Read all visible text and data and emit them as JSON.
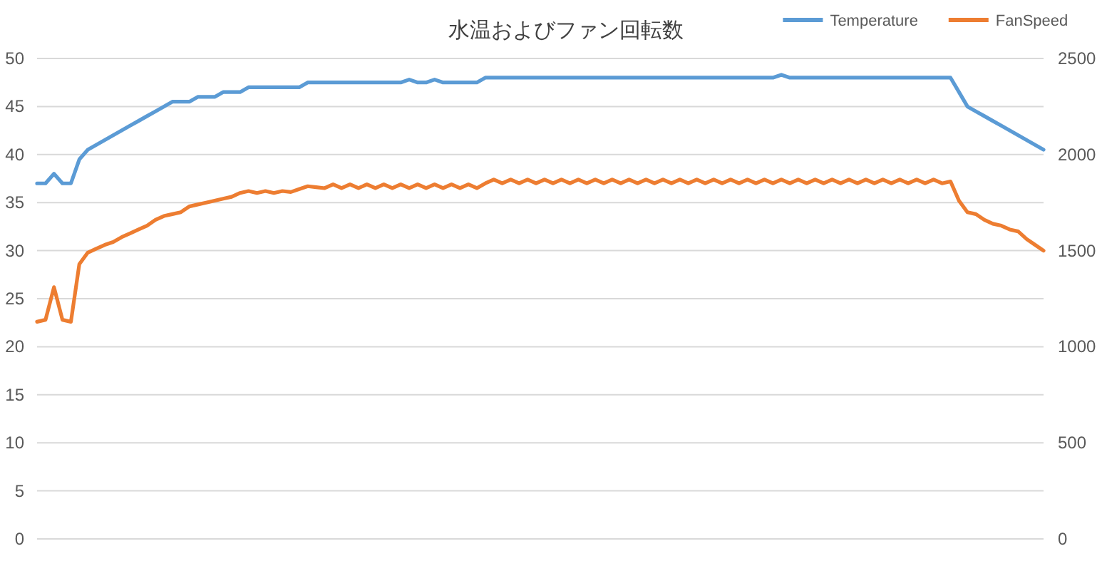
{
  "chart_data": {
    "type": "line",
    "title": "水温およびファン回転数",
    "categories": [
      null,
      null,
      null,
      null,
      null,
      null,
      null,
      null,
      null,
      null,
      null,
      null,
      null,
      null,
      null,
      null,
      null,
      null,
      null,
      null,
      null,
      null,
      null,
      null,
      null,
      null,
      null,
      null,
      null,
      null,
      null,
      null,
      null,
      null,
      null,
      null,
      null,
      null,
      null,
      null,
      null,
      null,
      null,
      null,
      null,
      null,
      null,
      null,
      null,
      null,
      null,
      null,
      null,
      null,
      null,
      null,
      null,
      null,
      null,
      null,
      null,
      null,
      null,
      null,
      null,
      null,
      null,
      null,
      null,
      null,
      null,
      null,
      null,
      null,
      null,
      null,
      null,
      null,
      null,
      null,
      null,
      null,
      null,
      null,
      null,
      null,
      null,
      null,
      null,
      null,
      null,
      null,
      null,
      null,
      null,
      null,
      null,
      null,
      null,
      null,
      null,
      null,
      null,
      null,
      null,
      null,
      null,
      null,
      null,
      null,
      null,
      null,
      null,
      null,
      null,
      null,
      null,
      null,
      null,
      null
    ],
    "series": [
      {
        "name": "Temperature",
        "color": "#5b9bd5",
        "values": [
          37,
          37,
          38,
          37,
          37,
          39.5,
          40.5,
          41,
          41.5,
          42,
          42.5,
          43,
          43.5,
          44,
          44.5,
          45,
          45.5,
          45.5,
          45.5,
          46,
          46,
          46,
          46.5,
          46.5,
          46.5,
          47,
          47,
          47,
          47,
          47,
          47,
          47,
          47.5,
          47.5,
          47.5,
          47.5,
          47.5,
          47.5,
          47.5,
          47.5,
          47.5,
          47.5,
          47.5,
          47.5,
          47.8,
          47.5,
          47.5,
          47.8,
          47.5,
          47.5,
          47.5,
          47.5,
          47.5,
          48,
          48,
          48,
          48,
          48,
          48,
          48,
          48,
          48,
          48,
          48,
          48,
          48,
          48,
          48,
          48,
          48,
          48,
          48,
          48,
          48,
          48,
          48,
          48,
          48,
          48,
          48,
          48,
          48,
          48,
          48,
          48,
          48,
          48,
          48,
          48.3,
          48,
          48,
          48,
          48,
          48,
          48,
          48,
          48,
          48,
          48,
          48,
          48,
          48,
          48,
          48,
          48,
          48,
          48,
          48,
          48,
          46.5,
          45,
          44.5,
          44,
          43.5,
          43,
          42.5,
          42,
          41.5,
          41,
          40.5
        ]
      },
      {
        "name": "FanSpeed",
        "color": "#ed7d31",
        "axis": "y2",
        "values": [
          1130,
          1140,
          1310,
          1140,
          1130,
          1430,
          1490,
          1510,
          1530,
          1545,
          1570,
          1590,
          1610,
          1630,
          1660,
          1680,
          1690,
          1700,
          1730,
          1740,
          1750,
          1760,
          1770,
          1780,
          1800,
          1810,
          1800,
          1810,
          1800,
          1810,
          1805,
          1820,
          1835,
          1830,
          1825,
          1845,
          1825,
          1845,
          1825,
          1845,
          1825,
          1845,
          1825,
          1845,
          1825,
          1845,
          1825,
          1845,
          1825,
          1845,
          1825,
          1845,
          1825,
          1850,
          1870,
          1850,
          1870,
          1850,
          1870,
          1850,
          1870,
          1850,
          1870,
          1850,
          1870,
          1850,
          1870,
          1850,
          1870,
          1850,
          1870,
          1850,
          1870,
          1850,
          1870,
          1850,
          1870,
          1850,
          1870,
          1850,
          1870,
          1850,
          1870,
          1850,
          1870,
          1850,
          1870,
          1850,
          1870,
          1850,
          1870,
          1850,
          1870,
          1850,
          1870,
          1850,
          1870,
          1850,
          1870,
          1850,
          1870,
          1850,
          1870,
          1850,
          1870,
          1850,
          1870,
          1850,
          1860,
          1760,
          1700,
          1690,
          1660,
          1640,
          1630,
          1610,
          1600,
          1560,
          1530,
          1500
        ]
      }
    ],
    "ylim": [
      0,
      50
    ],
    "yticks": [
      0,
      5,
      10,
      15,
      20,
      25,
      30,
      35,
      40,
      45,
      50
    ],
    "y2lim": [
      0,
      2500
    ],
    "y2ticks": [
      0,
      500,
      1000,
      1500,
      2000,
      2500
    ],
    "grid": "y",
    "legend": "top right"
  }
}
